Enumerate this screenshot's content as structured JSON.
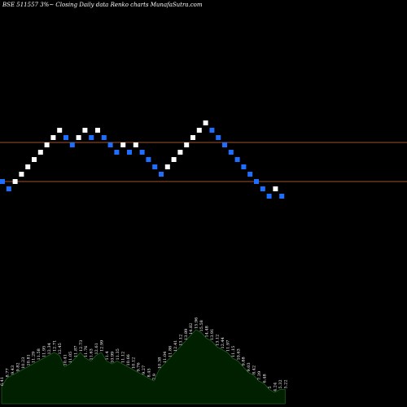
{
  "header": {
    "title": "BSE 511557 3%~  Closing Daily data  Renko  charts MunafaSutra.com"
  },
  "colors": {
    "background": "#000000",
    "up_brick": "#ffffff",
    "down_brick": "#1e6fff",
    "reference_line": "#a0522d",
    "volume_fill": "#002000",
    "volume_stroke": "#1e5e1e"
  },
  "chart_data": {
    "type": "renko",
    "title": "BSE 511557 3%~  Closing Daily data  Renko  charts MunafaSutra.com",
    "brick_size_percent": 3,
    "legend": "none",
    "grid": false,
    "reference_lines": [
      13.8,
      12.2
    ],
    "bricks": [
      {
        "value": 12.2,
        "direction": "down"
      },
      {
        "value": 11.9,
        "direction": "down"
      },
      {
        "value": 12.2,
        "direction": "up"
      },
      {
        "value": 12.5,
        "direction": "up"
      },
      {
        "value": 12.8,
        "direction": "up"
      },
      {
        "value": 13.1,
        "direction": "up"
      },
      {
        "value": 13.4,
        "direction": "up"
      },
      {
        "value": 13.7,
        "direction": "up"
      },
      {
        "value": 14.0,
        "direction": "up"
      },
      {
        "value": 14.3,
        "direction": "up"
      },
      {
        "value": 14.0,
        "direction": "down"
      },
      {
        "value": 13.7,
        "direction": "down"
      },
      {
        "value": 14.0,
        "direction": "up"
      },
      {
        "value": 14.3,
        "direction": "up"
      },
      {
        "value": 14.0,
        "direction": "down"
      },
      {
        "value": 14.3,
        "direction": "up"
      },
      {
        "value": 14.0,
        "direction": "down"
      },
      {
        "value": 13.7,
        "direction": "down"
      },
      {
        "value": 13.4,
        "direction": "down"
      },
      {
        "value": 13.7,
        "direction": "up"
      },
      {
        "value": 13.4,
        "direction": "down"
      },
      {
        "value": 13.7,
        "direction": "up"
      },
      {
        "value": 13.4,
        "direction": "down"
      },
      {
        "value": 13.1,
        "direction": "down"
      },
      {
        "value": 12.8,
        "direction": "down"
      },
      {
        "value": 12.5,
        "direction": "down"
      },
      {
        "value": 12.8,
        "direction": "up"
      },
      {
        "value": 13.1,
        "direction": "up"
      },
      {
        "value": 13.4,
        "direction": "up"
      },
      {
        "value": 13.7,
        "direction": "up"
      },
      {
        "value": 14.0,
        "direction": "up"
      },
      {
        "value": 14.3,
        "direction": "up"
      },
      {
        "value": 14.6,
        "direction": "up"
      },
      {
        "value": 14.3,
        "direction": "down"
      },
      {
        "value": 14.0,
        "direction": "down"
      },
      {
        "value": 13.7,
        "direction": "down"
      },
      {
        "value": 13.4,
        "direction": "down"
      },
      {
        "value": 13.1,
        "direction": "down"
      },
      {
        "value": 12.8,
        "direction": "down"
      },
      {
        "value": 12.5,
        "direction": "down"
      },
      {
        "value": 12.2,
        "direction": "down"
      },
      {
        "value": 11.9,
        "direction": "down"
      },
      {
        "value": 11.6,
        "direction": "down"
      },
      {
        "value": 11.9,
        "direction": "up"
      },
      {
        "value": 11.6,
        "direction": "down"
      }
    ],
    "volume_profile": {
      "labels": [
        "6.41",
        "8.77",
        "9.43",
        "9.82",
        "10.23",
        "10.81",
        "11.29",
        "11.58",
        "11.95",
        "12.34",
        "12.71",
        "12.45",
        "10.41",
        "11.05",
        "11.87",
        "12.73",
        "11.76",
        "11.63",
        "12.61",
        "12.99",
        "11.4",
        "10.99",
        "11.35",
        "11.12",
        "10.66",
        "10.12",
        "9.76",
        "9.27",
        "8.45",
        "7.9",
        "10.38",
        "11.04",
        "11.86",
        "12.41",
        "13.12",
        "13.89",
        "14.82",
        "15.96",
        "15.58",
        "14.48",
        "13.91",
        "13.12",
        "12.44",
        "11.97",
        "11.15",
        "10.63",
        "9.88",
        "9.03",
        "8.42",
        "7.39",
        "6.48",
        "5",
        "4.24",
        "5.32",
        "5.22"
      ],
      "heights": [
        6,
        9,
        10,
        11,
        12,
        13,
        14,
        15,
        16,
        17,
        18,
        17,
        13,
        14,
        16,
        18,
        16,
        15,
        17,
        18,
        15,
        14,
        15,
        14,
        13,
        12,
        11,
        10,
        9,
        8,
        12,
        14,
        16,
        18,
        20,
        22,
        24,
        26,
        25,
        23,
        22,
        20,
        19,
        18,
        16,
        15,
        13,
        11,
        10,
        8,
        7,
        5,
        4,
        5,
        5
      ]
    }
  }
}
